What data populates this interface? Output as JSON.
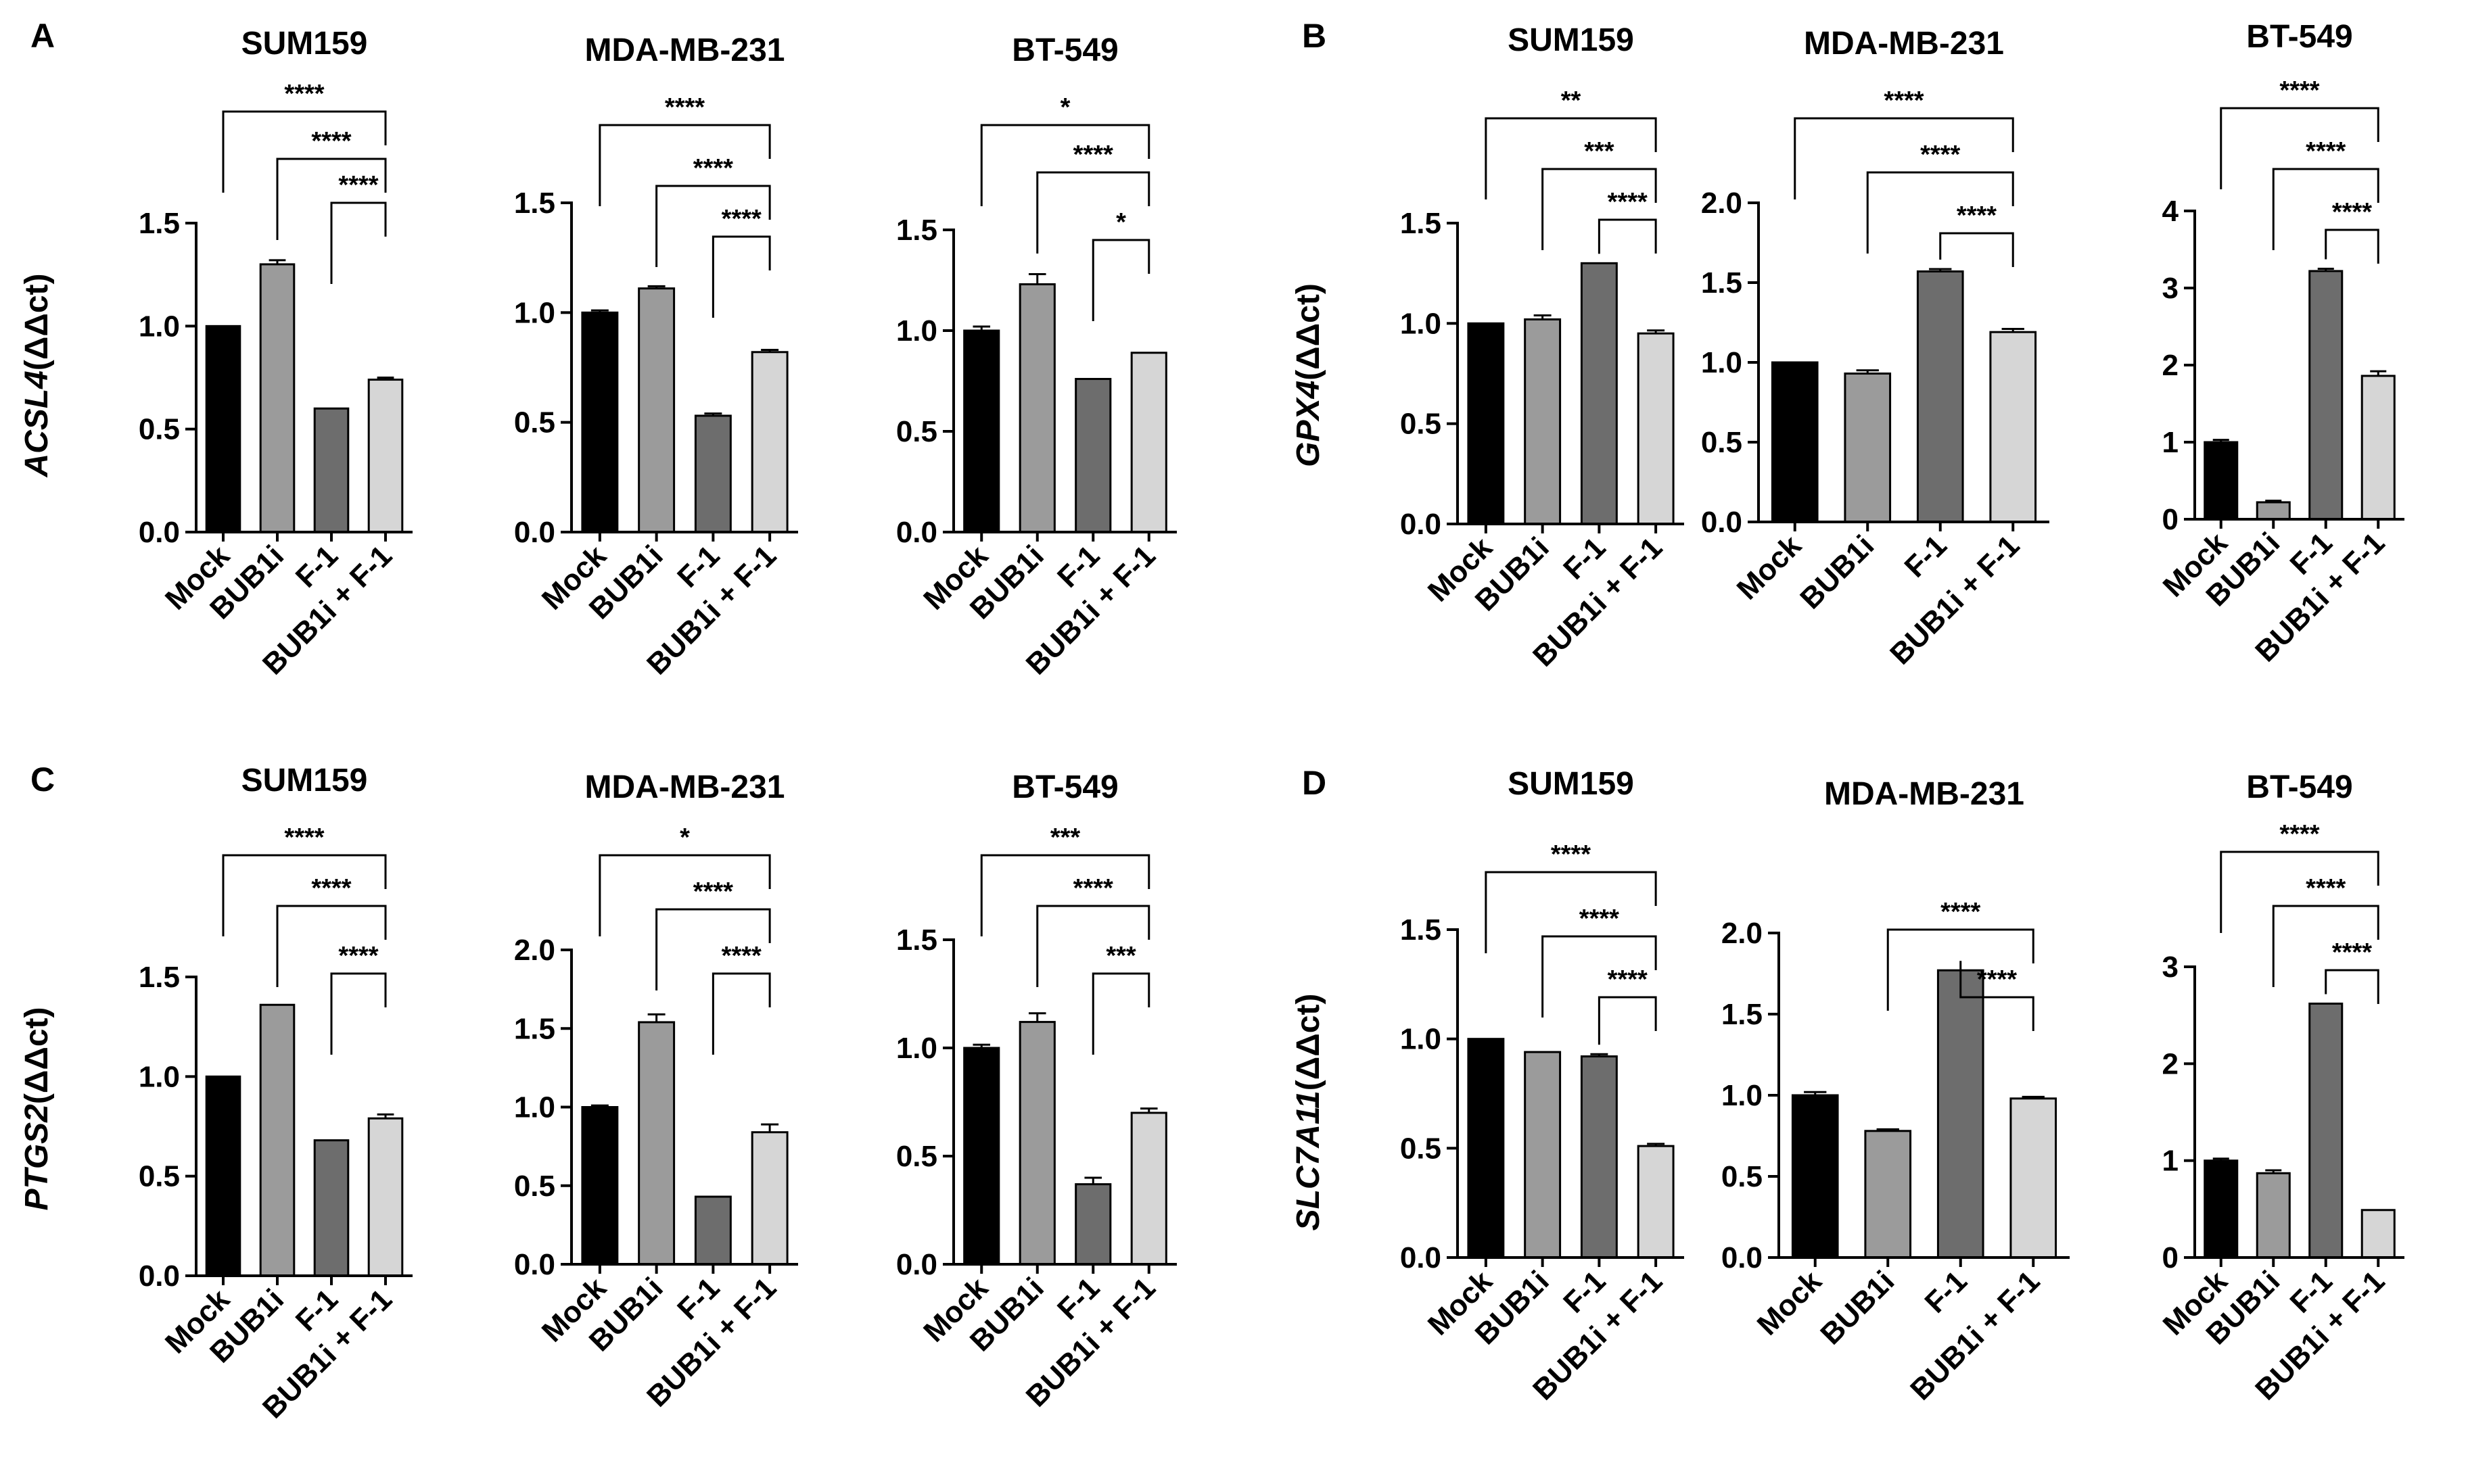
{
  "categories": [
    "Mock",
    "BUB1i",
    "F-1",
    "BUB1i + F-1"
  ],
  "colors": {
    "mock": "#000000",
    "bub1i": "#9b9b9b",
    "f1": "#6d6d6d",
    "combo": "#d6d6d6",
    "axis": "#000000"
  },
  "panels": [
    {
      "label": "A",
      "gene": "ACSL4",
      "ylabel_suffix": "(ΔΔct)"
    },
    {
      "label": "B",
      "gene": "GPX4",
      "ylabel_suffix": "(ΔΔct)"
    },
    {
      "label": "C",
      "gene": "PTGS2",
      "ylabel_suffix": "(ΔΔct)"
    },
    {
      "label": "D",
      "gene": "SLC7A11",
      "ylabel_suffix": "(ΔΔct)"
    }
  ],
  "chart_data": [
    {
      "panel": "A",
      "type": "bar",
      "title": "SUM159",
      "ylabel": "ACSL4 (ΔΔct)",
      "ylim": [
        0,
        1.5
      ],
      "ticks": [
        0.0,
        0.5,
        1.0,
        1.5
      ],
      "tick_labels": [
        "0.0",
        "0.5",
        "1.0",
        "1.5"
      ],
      "categories": [
        "Mock",
        "BUB1i",
        "F-1",
        "BUB1i + F-1"
      ],
      "values": [
        1.0,
        1.3,
        0.6,
        0.74
      ],
      "errors": [
        0,
        0.02,
        0,
        0.01
      ],
      "comparisons": [
        {
          "from": "Mock",
          "to": "BUB1i + F-1",
          "sig": "****"
        },
        {
          "from": "BUB1i",
          "to": "BUB1i + F-1",
          "sig": "****"
        },
        {
          "from": "F-1",
          "to": "BUB1i + F-1",
          "sig": "****"
        }
      ]
    },
    {
      "panel": "A",
      "type": "bar",
      "title": "MDA-MB-231",
      "ylabel": "",
      "ylim": [
        0,
        1.5
      ],
      "ticks": [
        0.0,
        0.5,
        1.0,
        1.5
      ],
      "tick_labels": [
        "0.0",
        "0.5",
        "1.0",
        "1.5"
      ],
      "categories": [
        "Mock",
        "BUB1i",
        "F-1",
        "BUB1i + F-1"
      ],
      "values": [
        1.0,
        1.11,
        0.53,
        0.82
      ],
      "errors": [
        0.01,
        0.01,
        0.01,
        0.01
      ],
      "comparisons": [
        {
          "from": "Mock",
          "to": "BUB1i + F-1",
          "sig": "****"
        },
        {
          "from": "BUB1i",
          "to": "BUB1i + F-1",
          "sig": "****"
        },
        {
          "from": "F-1",
          "to": "BUB1i + F-1",
          "sig": "****"
        }
      ]
    },
    {
      "panel": "A",
      "type": "bar",
      "title": "BT-549",
      "ylabel": "",
      "ylim": [
        0,
        1.5
      ],
      "ticks": [
        0.0,
        0.5,
        1.0,
        1.5
      ],
      "tick_labels": [
        "0.0",
        "0.5",
        "1.0",
        "1.5"
      ],
      "categories": [
        "Mock",
        "BUB1i",
        "F-1",
        "BUB1i + F-1"
      ],
      "values": [
        1.0,
        1.23,
        0.76,
        0.89
      ],
      "errors": [
        0.02,
        0.05,
        0,
        0
      ],
      "comparisons": [
        {
          "from": "Mock",
          "to": "BUB1i + F-1",
          "sig": "*"
        },
        {
          "from": "BUB1i",
          "to": "BUB1i + F-1",
          "sig": "****"
        },
        {
          "from": "F-1",
          "to": "BUB1i + F-1",
          "sig": "*"
        }
      ]
    },
    {
      "panel": "B",
      "type": "bar",
      "title": "SUM159",
      "ylabel": "GPX4 (ΔΔct)",
      "ylim": [
        0,
        1.5
      ],
      "ticks": [
        0.0,
        0.5,
        1.0,
        1.5
      ],
      "tick_labels": [
        "0.0",
        "0.5",
        "1.0",
        "1.5"
      ],
      "categories": [
        "Mock",
        "BUB1i",
        "F-1",
        "BUB1i + F-1"
      ],
      "values": [
        1.0,
        1.02,
        1.3,
        0.95
      ],
      "errors": [
        0,
        0.02,
        0,
        0.015
      ],
      "comparisons": [
        {
          "from": "Mock",
          "to": "BUB1i + F-1",
          "sig": "**"
        },
        {
          "from": "BUB1i",
          "to": "BUB1i + F-1",
          "sig": "***"
        },
        {
          "from": "F-1",
          "to": "BUB1i + F-1",
          "sig": "****"
        }
      ]
    },
    {
      "panel": "B",
      "type": "bar",
      "title": "MDA-MB-231",
      "ylabel": "",
      "ylim": [
        0,
        2.0
      ],
      "ticks": [
        0.0,
        0.5,
        1.0,
        1.5,
        2.0
      ],
      "tick_labels": [
        "0.0",
        "0.5",
        "1.0",
        "1.5",
        "2.0"
      ],
      "categories": [
        "Mock",
        "BUB1i",
        "F-1",
        "BUB1i + F-1"
      ],
      "values": [
        1.0,
        0.93,
        1.57,
        1.19
      ],
      "errors": [
        0,
        0.02,
        0.015,
        0.02
      ],
      "comparisons": [
        {
          "from": "Mock",
          "to": "BUB1i + F-1",
          "sig": "****"
        },
        {
          "from": "BUB1i",
          "to": "BUB1i + F-1",
          "sig": "****"
        },
        {
          "from": "F-1",
          "to": "BUB1i + F-1",
          "sig": "****"
        }
      ]
    },
    {
      "panel": "B",
      "type": "bar",
      "title": "BT-549",
      "ylabel": "",
      "ylim": [
        0,
        4
      ],
      "ticks": [
        0,
        1,
        2,
        3,
        4
      ],
      "tick_labels": [
        "0",
        "1",
        "2",
        "3",
        "4"
      ],
      "categories": [
        "Mock",
        "BUB1i",
        "F-1",
        "BUB1i + F-1"
      ],
      "values": [
        1.0,
        0.22,
        3.22,
        1.86
      ],
      "errors": [
        0.03,
        0.02,
        0.03,
        0.06
      ],
      "comparisons": [
        {
          "from": "Mock",
          "to": "BUB1i + F-1",
          "sig": "****"
        },
        {
          "from": "BUB1i",
          "to": "BUB1i + F-1",
          "sig": "****"
        },
        {
          "from": "F-1",
          "to": "BUB1i + F-1",
          "sig": "****"
        }
      ]
    },
    {
      "panel": "C",
      "type": "bar",
      "title": "SUM159",
      "ylabel": "PTGS2 (ΔΔct)",
      "ylim": [
        0,
        1.5
      ],
      "ticks": [
        0.0,
        0.5,
        1.0,
        1.5
      ],
      "tick_labels": [
        "0.0",
        "0.5",
        "1.0",
        "1.5"
      ],
      "categories": [
        "Mock",
        "BUB1i",
        "F-1",
        "BUB1i + F-1"
      ],
      "values": [
        1.0,
        1.36,
        0.68,
        0.79
      ],
      "errors": [
        0,
        0,
        0,
        0.02
      ],
      "comparisons": [
        {
          "from": "Mock",
          "to": "BUB1i + F-1",
          "sig": "****"
        },
        {
          "from": "BUB1i",
          "to": "BUB1i + F-1",
          "sig": "****"
        },
        {
          "from": "F-1",
          "to": "BUB1i + F-1",
          "sig": "****"
        }
      ]
    },
    {
      "panel": "C",
      "type": "bar",
      "title": "MDA-MB-231",
      "ylabel": "",
      "ylim": [
        0,
        2.0
      ],
      "ticks": [
        0.0,
        0.5,
        1.0,
        1.5,
        2.0
      ],
      "tick_labels": [
        "0.0",
        "0.5",
        "1.0",
        "1.5",
        "2.0"
      ],
      "categories": [
        "Mock",
        "BUB1i",
        "F-1",
        "BUB1i + F-1"
      ],
      "values": [
        1.0,
        1.54,
        0.43,
        0.84
      ],
      "errors": [
        0.01,
        0.05,
        0,
        0.05
      ],
      "comparisons": [
        {
          "from": "Mock",
          "to": "BUB1i + F-1",
          "sig": "*"
        },
        {
          "from": "BUB1i",
          "to": "BUB1i + F-1",
          "sig": "****"
        },
        {
          "from": "F-1",
          "to": "BUB1i + F-1",
          "sig": "****"
        }
      ]
    },
    {
      "panel": "C",
      "type": "bar",
      "title": "BT-549",
      "ylabel": "",
      "ylim": [
        0,
        1.5
      ],
      "ticks": [
        0.0,
        0.5,
        1.0,
        1.5
      ],
      "tick_labels": [
        "0.0",
        "0.5",
        "1.0",
        "1.5"
      ],
      "categories": [
        "Mock",
        "BUB1i",
        "F-1",
        "BUB1i + F-1"
      ],
      "values": [
        1.0,
        1.12,
        0.37,
        0.7
      ],
      "errors": [
        0.015,
        0.04,
        0.03,
        0.02
      ],
      "comparisons": [
        {
          "from": "Mock",
          "to": "BUB1i + F-1",
          "sig": "***"
        },
        {
          "from": "BUB1i",
          "to": "BUB1i + F-1",
          "sig": "****"
        },
        {
          "from": "F-1",
          "to": "BUB1i + F-1",
          "sig": "***"
        }
      ]
    },
    {
      "panel": "D",
      "type": "bar",
      "title": "SUM159",
      "ylabel": "SLC7A11 (ΔΔct)",
      "ylim": [
        0,
        1.5
      ],
      "ticks": [
        0.0,
        0.5,
        1.0,
        1.5
      ],
      "tick_labels": [
        "0.0",
        "0.5",
        "1.0",
        "1.5"
      ],
      "categories": [
        "Mock",
        "BUB1i",
        "F-1",
        "BUB1i + F-1"
      ],
      "values": [
        1.0,
        0.94,
        0.92,
        0.51
      ],
      "errors": [
        0,
        0,
        0.01,
        0.01
      ],
      "comparisons": [
        {
          "from": "Mock",
          "to": "BUB1i + F-1",
          "sig": "****"
        },
        {
          "from": "BUB1i",
          "to": "BUB1i + F-1",
          "sig": "****"
        },
        {
          "from": "F-1",
          "to": "BUB1i + F-1",
          "sig": "****"
        }
      ]
    },
    {
      "panel": "D",
      "type": "bar",
      "title": "MDA-MB-231",
      "ylabel": "",
      "ylim": [
        0,
        2.0
      ],
      "ticks": [
        0.0,
        0.5,
        1.0,
        1.5,
        2.0
      ],
      "tick_labels": [
        "0.0",
        "0.5",
        "1.0",
        "1.5",
        "2.0"
      ],
      "categories": [
        "Mock",
        "BUB1i",
        "F-1",
        "BUB1i + F-1"
      ],
      "values": [
        1.0,
        0.78,
        1.77,
        0.98
      ],
      "errors": [
        0.02,
        0.01,
        0,
        0.01
      ],
      "comparisons": [
        {
          "from": "BUB1i",
          "to": "BUB1i + F-1",
          "sig": "****"
        },
        {
          "from": "F-1",
          "to": "BUB1i + F-1",
          "sig": "****"
        }
      ]
    },
    {
      "panel": "D",
      "type": "bar",
      "title": "BT-549",
      "ylabel": "",
      "ylim": [
        0,
        3
      ],
      "ticks": [
        0,
        1,
        2,
        3
      ],
      "tick_labels": [
        "0",
        "1",
        "2",
        "3"
      ],
      "categories": [
        "Mock",
        "BUB1i",
        "F-1",
        "BUB1i + F-1"
      ],
      "values": [
        1.0,
        0.87,
        2.62,
        0.49
      ],
      "errors": [
        0.02,
        0.03,
        0,
        0
      ],
      "comparisons": [
        {
          "from": "Mock",
          "to": "BUB1i + F-1",
          "sig": "****"
        },
        {
          "from": "BUB1i",
          "to": "BUB1i + F-1",
          "sig": "****"
        },
        {
          "from": "F-1",
          "to": "BUB1i + F-1",
          "sig": "****"
        }
      ]
    }
  ]
}
